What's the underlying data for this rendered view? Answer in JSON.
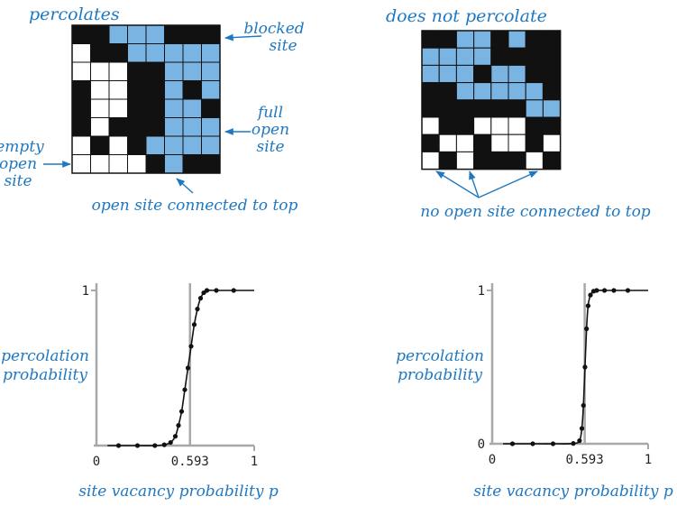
{
  "colors": {
    "blocked": "#111111",
    "open": "#ffffff",
    "full": "#79b4e2",
    "label": "#1f78c1",
    "axis": "#a8a8a8",
    "curve": "#111111"
  },
  "grid_left": {
    "title": "percolates",
    "rows": [
      "BBFFFBBB",
      "OBBFFFFF",
      "OOOBBFFF",
      "BOOBBFBF",
      "BOOBBFFB",
      "BOBBBFFF",
      "OBOBFFFF",
      "OOOOBFBB"
    ],
    "callouts": {
      "blocked": [
        "blocked",
        "site"
      ],
      "full": [
        "full",
        "open",
        "site"
      ],
      "empty": [
        "empty",
        "open",
        "site"
      ],
      "connected": "open site connected to top"
    }
  },
  "grid_right": {
    "title": "does not percolate",
    "rows": [
      "BBFFBFBB",
      "FFFFBBBB",
      "FFFBFFBB",
      "BBFFFFFB",
      "BBBBBBFF",
      "OBBOOOBB",
      "BOOBOOBO",
      "OBOBBBOB"
    ],
    "callouts": {
      "none": "no open site connected to top"
    }
  },
  "chart_data": [
    {
      "type": "line",
      "ylabel": [
        "percolation",
        "probability"
      ],
      "xlabel": "site vacancy probability p",
      "xlim": [
        0,
        1
      ],
      "ylim": [
        0,
        1
      ],
      "x_ticks": [
        "0",
        "0.593",
        "1"
      ],
      "y_ticks": [
        "1"
      ],
      "threshold": 0.593,
      "points": [
        [
          0.14,
          0
        ],
        [
          0.26,
          0
        ],
        [
          0.37,
          0
        ],
        [
          0.43,
          0.005
        ],
        [
          0.47,
          0.02
        ],
        [
          0.5,
          0.06
        ],
        [
          0.52,
          0.13
        ],
        [
          0.54,
          0.22
        ],
        [
          0.56,
          0.36
        ],
        [
          0.58,
          0.5
        ],
        [
          0.6,
          0.64
        ],
        [
          0.62,
          0.78
        ],
        [
          0.64,
          0.88
        ],
        [
          0.66,
          0.95
        ],
        [
          0.68,
          0.985
        ],
        [
          0.7,
          1
        ],
        [
          0.76,
          1
        ],
        [
          0.87,
          1
        ]
      ]
    },
    {
      "type": "line",
      "ylabel": [
        "percolation",
        "probability"
      ],
      "xlabel": "site vacancy probability p",
      "xlim": [
        0,
        1
      ],
      "ylim": [
        0,
        1
      ],
      "x_ticks": [
        "0",
        "0.593",
        "1"
      ],
      "y_ticks": [
        "0",
        "1"
      ],
      "threshold": 0.593,
      "points": [
        [
          0.13,
          0
        ],
        [
          0.26,
          0
        ],
        [
          0.39,
          0
        ],
        [
          0.52,
          0.002
        ],
        [
          0.56,
          0.02
        ],
        [
          0.575,
          0.1
        ],
        [
          0.585,
          0.25
        ],
        [
          0.595,
          0.5
        ],
        [
          0.605,
          0.75
        ],
        [
          0.615,
          0.9
        ],
        [
          0.63,
          0.97
        ],
        [
          0.65,
          0.995
        ],
        [
          0.67,
          1
        ],
        [
          0.72,
          1
        ],
        [
          0.78,
          1
        ],
        [
          0.87,
          1
        ]
      ]
    }
  ]
}
